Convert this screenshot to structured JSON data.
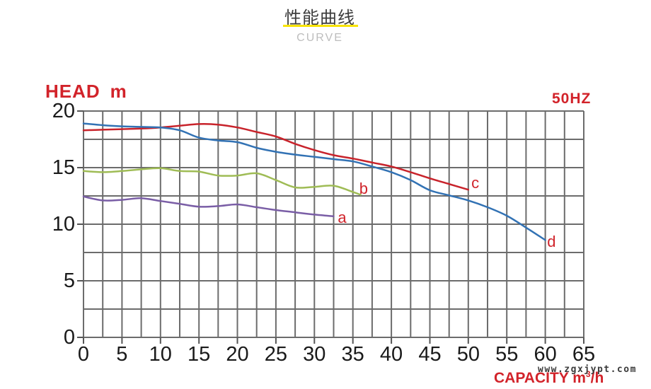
{
  "header": {
    "title": "性能曲线",
    "subtitle": "CURVE"
  },
  "axes": {
    "y_title": "HEAD",
    "y_unit": "m",
    "freq": "50HZ",
    "x_title_prefix": "CAPACITY m",
    "x_title_sup": "3",
    "x_title_suffix": "/h"
  },
  "watermark": "www.zgxjypt.com",
  "colors": {
    "accent_red": "#d2232a",
    "grid": "#6c6c6c",
    "tick": "#555555",
    "underline_yellow": "#f8e400",
    "curve_a": "#7a5ea6",
    "curve_b": "#9fbc55",
    "curve_c": "#c8232b",
    "curve_d": "#3272b4"
  },
  "chart_data": {
    "type": "line",
    "title": "性能曲线",
    "subtitle": "CURVE",
    "frequency": "50HZ",
    "xlabel": "CAPACITY m³/h",
    "ylabel": "HEAD m",
    "xlim": [
      0,
      65
    ],
    "ylim": [
      0,
      20
    ],
    "x_major_ticks": [
      0,
      5,
      10,
      15,
      20,
      25,
      30,
      35,
      40,
      45,
      50,
      55,
      60,
      65
    ],
    "y_major_ticks": [
      0,
      5,
      10,
      15,
      20
    ],
    "grid_step_x": 2.5,
    "grid_step_y": 2.5,
    "grid_on": true,
    "legend_position": "inline-labels",
    "series": [
      {
        "name": "a",
        "color": "#7a5ea6",
        "label_at": [
          33.6,
          10.55
        ],
        "points": [
          [
            0,
            12.45
          ],
          [
            2.5,
            12.1
          ],
          [
            5,
            12.15
          ],
          [
            7.5,
            12.3
          ],
          [
            10,
            12.05
          ],
          [
            12.5,
            11.8
          ],
          [
            15,
            11.55
          ],
          [
            17.5,
            11.6
          ],
          [
            20,
            11.75
          ],
          [
            22.5,
            11.5
          ],
          [
            25,
            11.25
          ],
          [
            27.5,
            11.05
          ],
          [
            30,
            10.85
          ],
          [
            32.5,
            10.7
          ]
        ]
      },
      {
        "name": "b",
        "color": "#9fbc55",
        "label_at": [
          36.4,
          13.1
        ],
        "points": [
          [
            0,
            14.7
          ],
          [
            2.5,
            14.6
          ],
          [
            5,
            14.7
          ],
          [
            7.5,
            14.85
          ],
          [
            10,
            14.95
          ],
          [
            12.5,
            14.7
          ],
          [
            15,
            14.65
          ],
          [
            17.5,
            14.3
          ],
          [
            20,
            14.3
          ],
          [
            22.5,
            14.5
          ],
          [
            25,
            13.9
          ],
          [
            27.5,
            13.25
          ],
          [
            30,
            13.3
          ],
          [
            32.5,
            13.4
          ],
          [
            35,
            12.85
          ],
          [
            36,
            12.6
          ]
        ]
      },
      {
        "name": "c",
        "color": "#c8232b",
        "label_at": [
          50.9,
          13.6
        ],
        "points": [
          [
            0,
            18.3
          ],
          [
            2.5,
            18.35
          ],
          [
            5,
            18.4
          ],
          [
            7.5,
            18.45
          ],
          [
            10,
            18.55
          ],
          [
            12.5,
            18.7
          ],
          [
            15,
            18.85
          ],
          [
            17.5,
            18.8
          ],
          [
            20,
            18.55
          ],
          [
            22.5,
            18.15
          ],
          [
            25,
            17.75
          ],
          [
            27.5,
            17.1
          ],
          [
            30,
            16.55
          ],
          [
            32.5,
            16.1
          ],
          [
            35,
            15.8
          ],
          [
            37.5,
            15.45
          ],
          [
            40,
            15.1
          ],
          [
            42.5,
            14.6
          ],
          [
            45,
            14.05
          ],
          [
            47.5,
            13.55
          ],
          [
            50,
            13.05
          ]
        ]
      },
      {
        "name": "d",
        "color": "#3272b4",
        "label_at": [
          60.8,
          8.45
        ],
        "points": [
          [
            0,
            18.9
          ],
          [
            2.5,
            18.75
          ],
          [
            5,
            18.65
          ],
          [
            7.5,
            18.6
          ],
          [
            10,
            18.55
          ],
          [
            12.5,
            18.3
          ],
          [
            15,
            17.65
          ],
          [
            17.5,
            17.4
          ],
          [
            20,
            17.25
          ],
          [
            22.5,
            16.75
          ],
          [
            25,
            16.4
          ],
          [
            27.5,
            16.15
          ],
          [
            30,
            15.95
          ],
          [
            32.5,
            15.75
          ],
          [
            35,
            15.55
          ],
          [
            37.5,
            15.1
          ],
          [
            40,
            14.6
          ],
          [
            42.5,
            13.9
          ],
          [
            45,
            13.0
          ],
          [
            47.5,
            12.55
          ],
          [
            50,
            12.1
          ],
          [
            52.5,
            11.5
          ],
          [
            55,
            10.75
          ],
          [
            57.5,
            9.7
          ],
          [
            60,
            8.6
          ]
        ]
      }
    ]
  }
}
